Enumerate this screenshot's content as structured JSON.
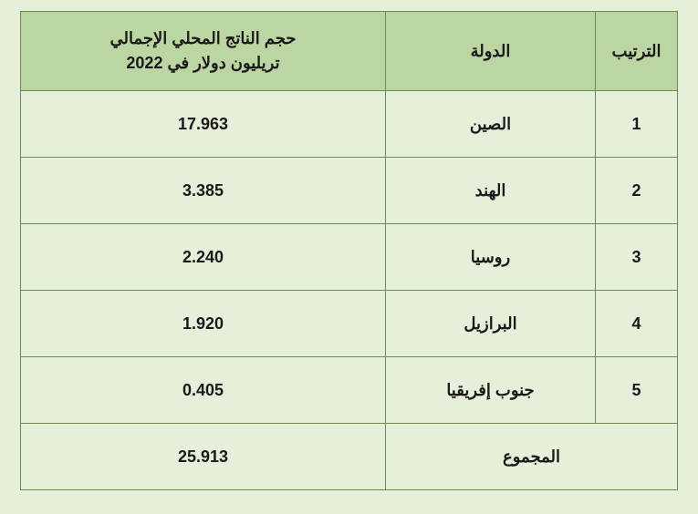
{
  "table": {
    "columns": {
      "rank": "الترتيب",
      "country": "الدولة",
      "gdp_line1": "حجم الناتج المحلي الإجمالي",
      "gdp_line2": "تريليون دولار في 2022"
    },
    "rows": [
      {
        "rank": "1",
        "country": "الصين",
        "gdp": "17.963"
      },
      {
        "rank": "2",
        "country": "الهند",
        "gdp": "3.385"
      },
      {
        "rank": "3",
        "country": "روسيا",
        "gdp": "2.240"
      },
      {
        "rank": "4",
        "country": "البرازيل",
        "gdp": "1.920"
      },
      {
        "rank": "5",
        "country": "جنوب إفريقيا",
        "gdp": "0.405"
      }
    ],
    "footer": {
      "label": "المجموع",
      "total": "25.913"
    },
    "colors": {
      "background": "#e6efd9",
      "header_bg": "#bcd6a3",
      "border": "#6b8a4f",
      "text": "#1a1a1a"
    },
    "col_widths": {
      "rank": 90,
      "country": 230
    }
  }
}
